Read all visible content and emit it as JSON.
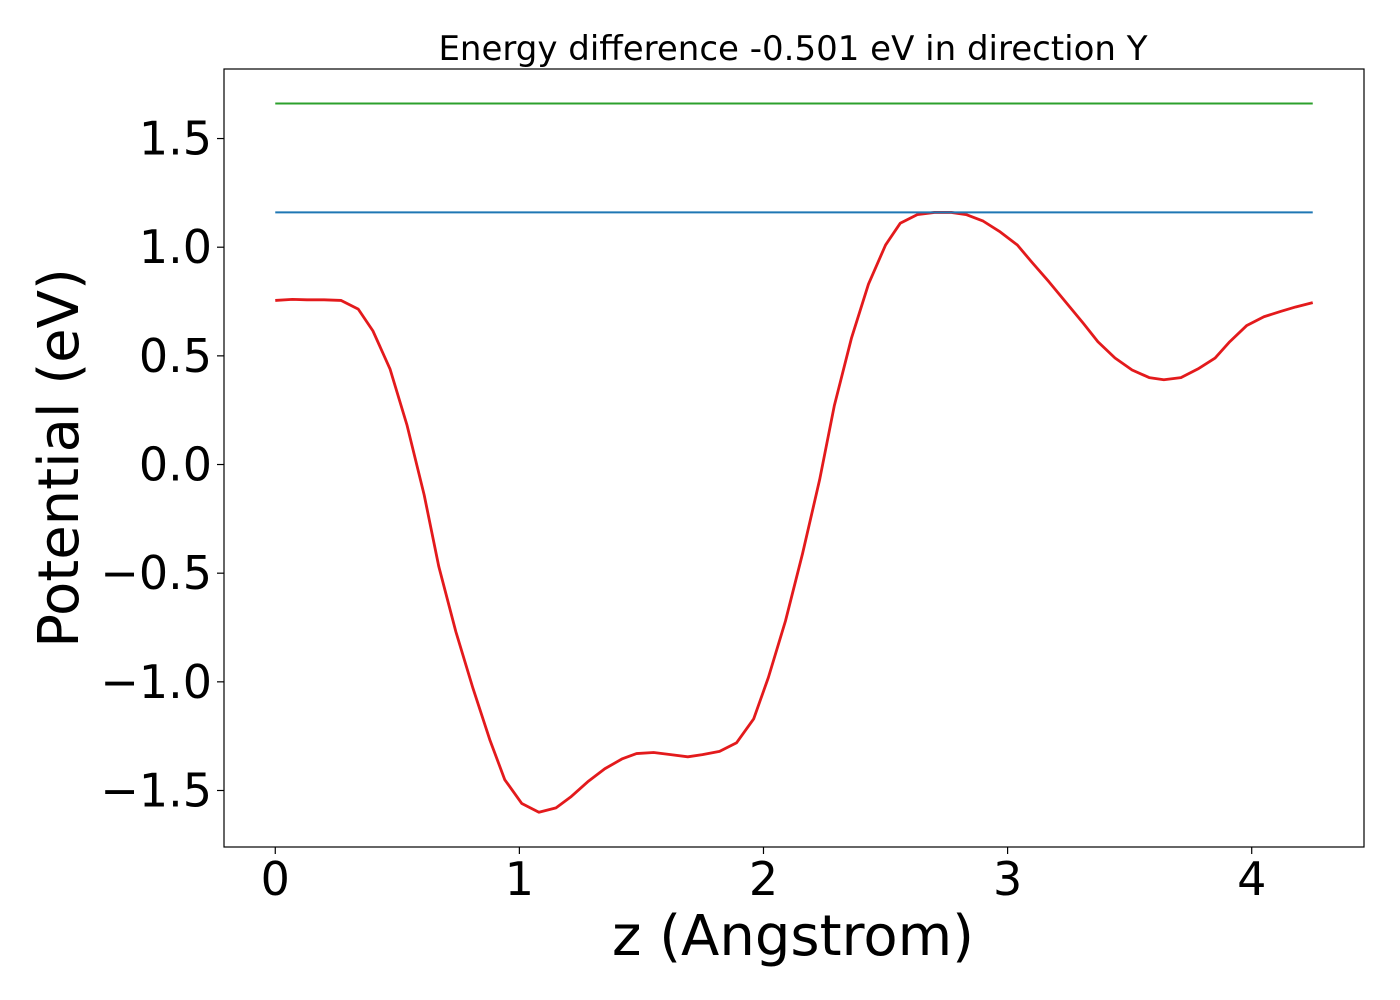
{
  "chart_data": {
    "type": "line",
    "title": "Energy difference -0.501 eV in direction Y",
    "xlabel": "z (Angstrom)",
    "ylabel": "Potential (eV)",
    "xlim": [
      -0.21,
      4.46
    ],
    "ylim": [
      -1.76,
      1.82
    ],
    "xticks": [
      0,
      1,
      2,
      3,
      4
    ],
    "xtick_labels": [
      "0",
      "1",
      "2",
      "3",
      "4"
    ],
    "yticks": [
      -1.5,
      -1.0,
      -0.5,
      0.0,
      0.5,
      1.0,
      1.5
    ],
    "ytick_labels": [
      "−1.5",
      "−1.0",
      "−0.5",
      "0.0",
      "0.5",
      "1.0",
      "1.5"
    ],
    "grid": false,
    "colors": {
      "potential": "#e31a1c",
      "level_1": "#1f77b4",
      "level_2": "#2ca02c"
    },
    "series": [
      {
        "color": "#e31a1c",
        "x": [
          0.0,
          0.07,
          0.13,
          0.2,
          0.27,
          0.34,
          0.4,
          0.47,
          0.54,
          0.61,
          0.67,
          0.74,
          0.81,
          0.88,
          0.94,
          1.01,
          1.08,
          1.15,
          1.21,
          1.28,
          1.35,
          1.42,
          1.48,
          1.55,
          1.62,
          1.69,
          1.75,
          1.82,
          1.89,
          1.96,
          2.02,
          2.09,
          2.16,
          2.23,
          2.29,
          2.36,
          2.43,
          2.5,
          2.56,
          2.63,
          2.7,
          2.77,
          2.83,
          2.9,
          2.97,
          3.04,
          3.1,
          3.17,
          3.24,
          3.31,
          3.37,
          3.44,
          3.51,
          3.58,
          3.64,
          3.71,
          3.78,
          3.85,
          3.91,
          3.98,
          4.05,
          4.12,
          4.18,
          4.25
        ],
        "y": [
          0.755,
          0.76,
          0.758,
          0.758,
          0.755,
          0.715,
          0.615,
          0.44,
          0.18,
          -0.14,
          -0.47,
          -0.77,
          -1.03,
          -1.27,
          -1.45,
          -1.56,
          -1.6,
          -1.58,
          -1.53,
          -1.46,
          -1.4,
          -1.355,
          -1.33,
          -1.325,
          -1.335,
          -1.345,
          -1.335,
          -1.32,
          -1.28,
          -1.17,
          -0.98,
          -0.72,
          -0.41,
          -0.07,
          0.27,
          0.58,
          0.83,
          1.01,
          1.11,
          1.15,
          1.16,
          1.16,
          1.15,
          1.12,
          1.07,
          1.01,
          0.93,
          0.84,
          0.745,
          0.65,
          0.565,
          0.49,
          0.435,
          0.4,
          0.39,
          0.4,
          0.44,
          0.49,
          0.565,
          0.64,
          0.68,
          0.705,
          0.725,
          0.745
        ]
      },
      {
        "color": "#1f77b4",
        "x": [
          0.0,
          4.25
        ],
        "y": [
          1.16,
          1.16
        ]
      },
      {
        "color": "#2ca02c",
        "x": [
          0.0,
          4.25
        ],
        "y": [
          1.661,
          1.661
        ]
      }
    ]
  }
}
